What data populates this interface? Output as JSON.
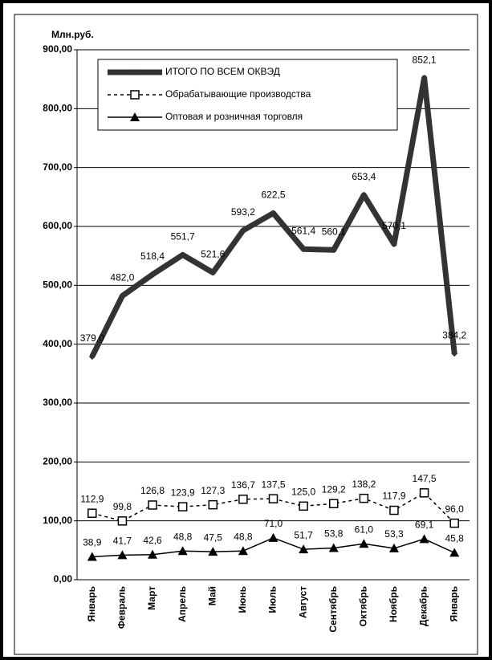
{
  "chart_data": {
    "type": "line",
    "y_axis_label": "Млн.руб.",
    "categories": [
      "Январь",
      "Февраль",
      "Март",
      "Апрель",
      "Май",
      "Июнь",
      "Июль",
      "Август",
      "Сентябрь",
      "Октябрь",
      "Ноябрь",
      "Декабрь",
      "Январь"
    ],
    "series": [
      {
        "name": "ИТОГО ПО ВСЕМ ОКВЭД",
        "color": "#333333",
        "marker": "diamond",
        "dashed": false,
        "values": [
          379.0,
          482.0,
          518.4,
          551.7,
          521.6,
          593.2,
          622.5,
          561.4,
          560.1,
          653.4,
          570.1,
          852.1,
          384.2
        ],
        "value_labels": [
          "379,0",
          "482,0",
          "518,4",
          "551,7",
          "521,6",
          "593,2",
          "622,5",
          "561,4",
          "560,1",
          "653,4",
          "570,1",
          "852,1",
          "384,2"
        ]
      },
      {
        "name": "Обрабатывающие производства",
        "color": "#000000",
        "marker": "square",
        "dashed": true,
        "values": [
          112.9,
          99.8,
          126.8,
          123.9,
          127.3,
          136.7,
          137.5,
          125.0,
          129.2,
          138.2,
          117.9,
          147.5,
          96.0
        ],
        "value_labels": [
          "112,9",
          "99,8",
          "126,8",
          "123,9",
          "127,3",
          "136,7",
          "137,5",
          "125,0",
          "129,2",
          "138,2",
          "117,9",
          "147,5",
          "96,0"
        ]
      },
      {
        "name": "Оптовая и розничная торговля",
        "color": "#000000",
        "marker": "triangle",
        "dashed": false,
        "values": [
          38.9,
          41.7,
          42.6,
          48.8,
          47.5,
          48.8,
          71.0,
          51.7,
          53.8,
          61.0,
          53.3,
          69.1,
          45.8
        ],
        "value_labels": [
          "38,9",
          "41,7",
          "42,6",
          "48,8",
          "47,5",
          "48,8",
          "71,0",
          "51,7",
          "53,8",
          "61,0",
          "53,3",
          "69,1",
          "45,8"
        ]
      }
    ],
    "ylim": [
      0,
      900
    ],
    "yticks": [
      {
        "value": 0,
        "label": "0,00"
      },
      {
        "value": 100,
        "label": "100,00"
      },
      {
        "value": 200,
        "label": "200,00"
      },
      {
        "value": 300,
        "label": "300,00"
      },
      {
        "value": 400,
        "label": "400,00"
      },
      {
        "value": 500,
        "label": "500,00"
      },
      {
        "value": 600,
        "label": "600,00"
      },
      {
        "value": 700,
        "label": "700,00"
      },
      {
        "value": 800,
        "label": "800,00"
      },
      {
        "value": 900,
        "label": "900,00"
      }
    ],
    "grid": true,
    "legend": "top-left"
  }
}
